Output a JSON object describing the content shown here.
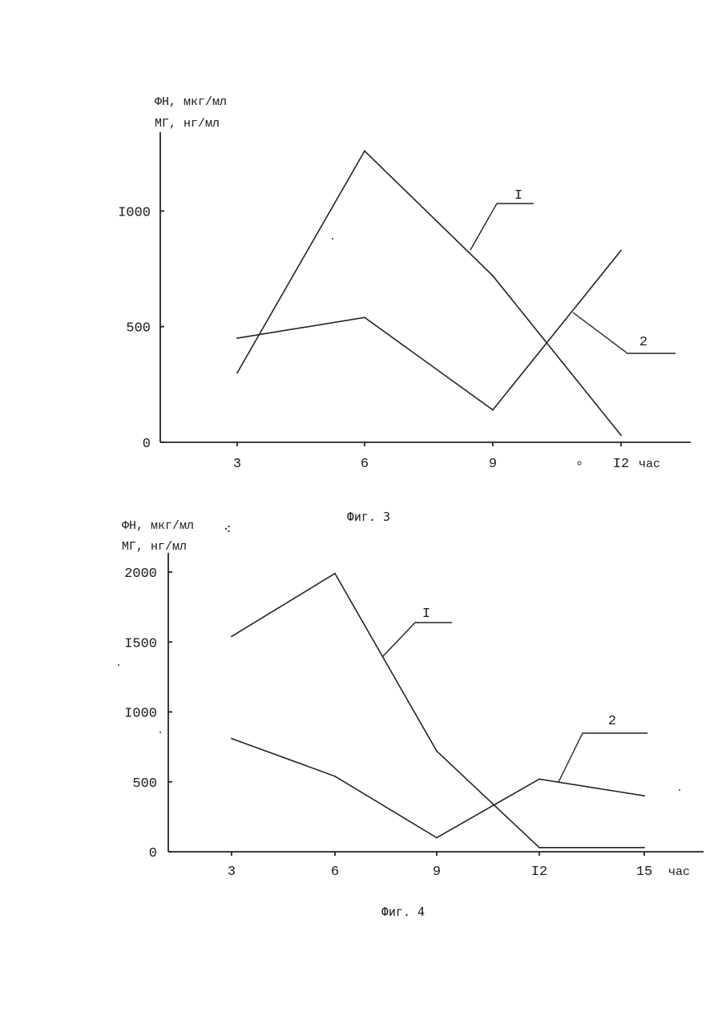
{
  "chart_data": [
    {
      "type": "line",
      "caption": "Фиг. 3",
      "ylabel_lines": [
        "ФН, мкг/мл",
        "МГ, нг/мл"
      ],
      "xlabel": "час",
      "x_ticks": [
        "3",
        "6",
        "9",
        "I2"
      ],
      "y_ticks": [
        "0",
        "500",
        "I000"
      ],
      "ylim": [
        0,
        1300
      ],
      "series": [
        {
          "name": "I",
          "x": [
            3,
            6,
            9,
            12
          ],
          "values": [
            300,
            1260,
            720,
            30
          ]
        },
        {
          "name": "2",
          "x": [
            3,
            6,
            9,
            12
          ],
          "values": [
            450,
            540,
            140,
            830
          ]
        }
      ]
    },
    {
      "type": "line",
      "caption": "Фиг. 4",
      "ylabel_lines": [
        "ФН, мкг/мл",
        "МГ, нг/мл"
      ],
      "xlabel": "час",
      "x_ticks": [
        "3",
        "6",
        "9",
        "I2",
        "15"
      ],
      "y_ticks": [
        "0",
        "500",
        "I000",
        "I500",
        "2000"
      ],
      "ylim": [
        0,
        2050
      ],
      "series": [
        {
          "name": "I",
          "x": [
            3,
            6,
            9,
            12,
            15
          ],
          "values": [
            1540,
            1990,
            720,
            30,
            30
          ]
        },
        {
          "name": "2",
          "x": [
            3,
            6,
            9,
            12,
            15
          ],
          "values": [
            810,
            540,
            100,
            520,
            400
          ]
        }
      ]
    }
  ]
}
